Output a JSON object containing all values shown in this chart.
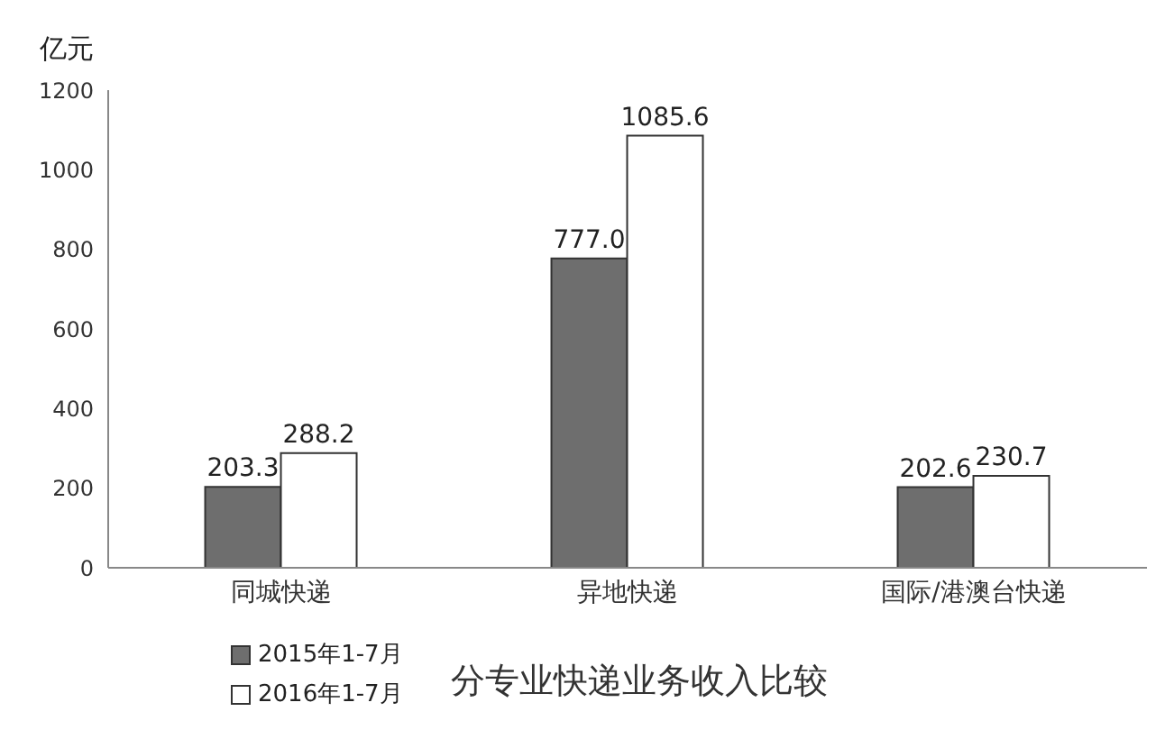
{
  "chart_data": {
    "type": "bar",
    "title": "分专业快递业务收入比较",
    "ylabel": "亿元",
    "categories": [
      "同城快递",
      "异地快递",
      "国际/港澳台快递"
    ],
    "series": [
      {
        "name": "2015年1-7月",
        "color": "#6e6e6e",
        "values": [
          203.3,
          777.0,
          202.6
        ],
        "value_labels": [
          "203.3",
          "777.0",
          "202.6"
        ]
      },
      {
        "name": "2016年1-7月",
        "color": "#ffffff",
        "values": [
          288.2,
          1085.6,
          230.7
        ],
        "value_labels": [
          "288.2",
          "1085.6",
          "230.7"
        ]
      }
    ],
    "ylim": [
      0,
      1200
    ],
    "yticks": [
      0,
      200,
      400,
      600,
      800,
      1000,
      1200
    ],
    "grid": false,
    "legend": "bottom left"
  }
}
